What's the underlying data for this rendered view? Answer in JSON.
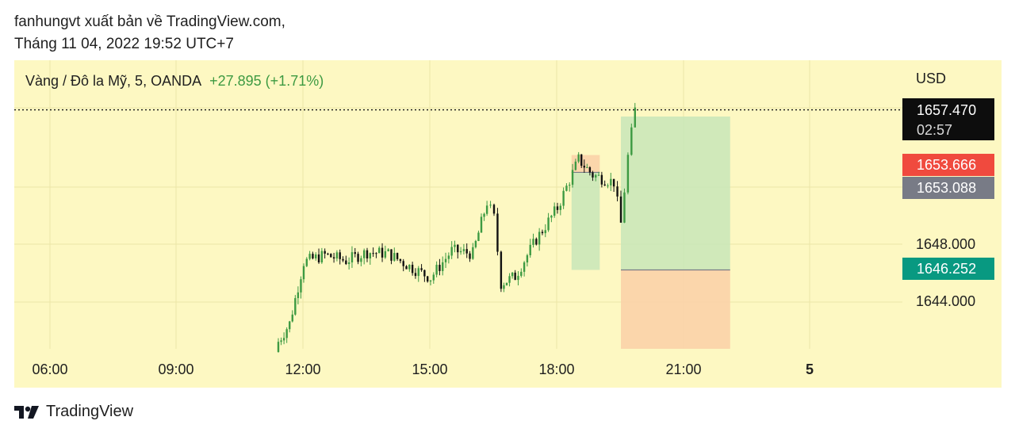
{
  "header": {
    "line1": "fanhungvt xuất bản về TradingView.com,",
    "line2": "Tháng 11 04, 2022 19:52 UTC+7"
  },
  "pane": {
    "symbol": "Vàng / Đô la Mỹ, 5, OANDA",
    "change": "+27.895 (+1.71%)"
  },
  "currency": "USD",
  "price_tags": {
    "current": "1657.470",
    "countdown": "02:57",
    "red": "1653.666",
    "gray": "1653.088",
    "green": "1646.252"
  },
  "colors": {
    "bg": "#fdf8c2",
    "up": "#3d9a42",
    "down": "#111111",
    "profit": "#c8e6b8",
    "loss": "#fbd2a8",
    "tag_current": "#0d0d0d",
    "tag_red": "#f04a3e",
    "tag_gray": "#787b86",
    "tag_green": "#089981"
  },
  "footer": {
    "brand": "TradingView",
    "logo_icon": "tradingview-logo-icon"
  },
  "chart_data": {
    "type": "candlestick",
    "x_ticks": [
      "06:00",
      "09:00",
      "12:00",
      "15:00",
      "18:00",
      "21:00",
      "5"
    ],
    "y_ticks": [
      "1648.000",
      "1644.000"
    ],
    "current_price": 1657.47,
    "close_series": [
      {
        "time": "11:20",
        "value": 1640.9
      },
      {
        "time": "11:40",
        "value": 1642.5
      },
      {
        "time": "12:00",
        "value": 1646.8
      },
      {
        "time": "12:30",
        "value": 1647.3
      },
      {
        "time": "13:00",
        "value": 1646.9
      },
      {
        "time": "13:30",
        "value": 1647.5
      },
      {
        "time": "14:00",
        "value": 1647.4
      },
      {
        "time": "14:30",
        "value": 1646.5
      },
      {
        "time": "15:00",
        "value": 1645.7
      },
      {
        "time": "15:30",
        "value": 1647.6
      },
      {
        "time": "16:00",
        "value": 1647.4
      },
      {
        "time": "16:20",
        "value": 1651.0
      },
      {
        "time": "16:30",
        "value": 1649.9
      },
      {
        "time": "16:40",
        "value": 1645.3
      },
      {
        "time": "17:00",
        "value": 1645.8
      },
      {
        "time": "17:30",
        "value": 1648.4
      },
      {
        "time": "18:00",
        "value": 1650.6
      },
      {
        "time": "18:30",
        "value": 1654.0
      },
      {
        "time": "18:50",
        "value": 1652.9
      },
      {
        "time": "19:20",
        "value": 1652.4
      },
      {
        "time": "19:30",
        "value": 1649.5
      },
      {
        "time": "19:40",
        "value": 1654.2
      },
      {
        "time": "19:50",
        "value": 1657.47
      }
    ],
    "positions": [
      {
        "from": "18:20",
        "to": "19:00",
        "entry": 1653.088,
        "target": 1646.252,
        "stop": 1654.3
      },
      {
        "from": "19:30",
        "to": "22:05",
        "entry": 1646.252,
        "target": 1657.0,
        "stop": 1640.2
      }
    ]
  }
}
